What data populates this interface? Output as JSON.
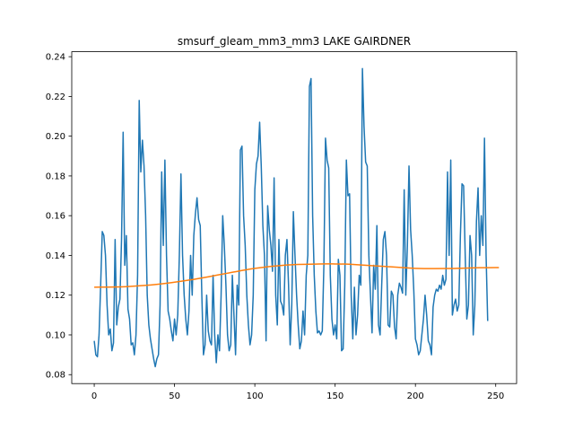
{
  "chart_data": {
    "type": "line",
    "title": "smsurf_gleam_mm3_mm3 LAKE GAIRDNER",
    "xlabel": "",
    "ylabel": "",
    "xlim": [
      -14,
      263
    ],
    "ylim": [
      0.0755,
      0.2425
    ],
    "x_ticks": [
      0,
      50,
      100,
      150,
      200,
      250
    ],
    "y_ticks": [
      0.08,
      0.1,
      0.12,
      0.14,
      0.16,
      0.18,
      0.2,
      0.22,
      0.24
    ],
    "grid": false,
    "legend": "none",
    "series": [
      {
        "color": "#1f77b4",
        "values": [
          0.097,
          0.09,
          0.089,
          0.1,
          0.125,
          0.152,
          0.15,
          0.14,
          0.115,
          0.1,
          0.103,
          0.092,
          0.096,
          0.148,
          0.105,
          0.114,
          0.118,
          0.148,
          0.202,
          0.135,
          0.15,
          0.113,
          0.108,
          0.095,
          0.096,
          0.09,
          0.1,
          0.13,
          0.218,
          0.182,
          0.198,
          0.185,
          0.16,
          0.12,
          0.105,
          0.098,
          0.093,
          0.088,
          0.084,
          0.088,
          0.09,
          0.115,
          0.182,
          0.145,
          0.188,
          0.14,
          0.112,
          0.108,
          0.102,
          0.097,
          0.108,
          0.1,
          0.11,
          0.14,
          0.181,
          0.14,
          0.12,
          0.108,
          0.1,
          0.112,
          0.14,
          0.12,
          0.15,
          0.161,
          0.169,
          0.158,
          0.155,
          0.12,
          0.09,
          0.095,
          0.12,
          0.102,
          0.097,
          0.095,
          0.13,
          0.1,
          0.086,
          0.1,
          0.092,
          0.12,
          0.16,
          0.145,
          0.125,
          0.1,
          0.092,
          0.095,
          0.13,
          0.11,
          0.09,
          0.125,
          0.115,
          0.193,
          0.195,
          0.16,
          0.145,
          0.12,
          0.105,
          0.095,
          0.1,
          0.12,
          0.173,
          0.186,
          0.19,
          0.207,
          0.185,
          0.155,
          0.14,
          0.097,
          0.165,
          0.153,
          0.145,
          0.132,
          0.179,
          0.12,
          0.105,
          0.148,
          0.117,
          0.115,
          0.11,
          0.14,
          0.148,
          0.125,
          0.095,
          0.115,
          0.162,
          0.14,
          0.12,
          0.105,
          0.093,
          0.097,
          0.112,
          0.1,
          0.13,
          0.14,
          0.225,
          0.229,
          0.16,
          0.13,
          0.112,
          0.101,
          0.102,
          0.1,
          0.102,
          0.135,
          0.199,
          0.188,
          0.184,
          0.13,
          0.108,
          0.1,
          0.105,
          0.098,
          0.138,
          0.13,
          0.092,
          0.093,
          0.125,
          0.188,
          0.17,
          0.171,
          0.12,
          0.098,
          0.124,
          0.1,
          0.11,
          0.13,
          0.125,
          0.234,
          0.205,
          0.187,
          0.185,
          0.14,
          0.12,
          0.101,
          0.135,
          0.123,
          0.155,
          0.105,
          0.1,
          0.125,
          0.148,
          0.152,
          0.14,
          0.105,
          0.104,
          0.122,
          0.12,
          0.104,
          0.098,
          0.12,
          0.126,
          0.124,
          0.121,
          0.173,
          0.12,
          0.145,
          0.185,
          0.153,
          0.14,
          0.122,
          0.098,
          0.095,
          0.09,
          0.092,
          0.1,
          0.108,
          0.12,
          0.11,
          0.097,
          0.095,
          0.09,
          0.114,
          0.12,
          0.123,
          0.122,
          0.125,
          0.123,
          0.13,
          0.125,
          0.128,
          0.182,
          0.14,
          0.188,
          0.11,
          0.115,
          0.118,
          0.112,
          0.115,
          0.15,
          0.176,
          0.175,
          0.14,
          0.108,
          0.115,
          0.15,
          0.14,
          0.1,
          0.115,
          0.157,
          0.174,
          0.14,
          0.16,
          0.145,
          0.199,
          0.14,
          0.107
        ]
      },
      {
        "color": "#ff7f0e",
        "anchors": {
          "x": [
            0,
            20,
            40,
            60,
            80,
            100,
            120,
            140,
            150,
            160,
            180,
            200,
            220,
            240,
            252
          ],
          "y": [
            0.124,
            0.1243,
            0.1255,
            0.1277,
            0.1306,
            0.1335,
            0.1352,
            0.1357,
            0.1357,
            0.1355,
            0.1345,
            0.1335,
            0.1334,
            0.1338,
            0.1339
          ]
        }
      }
    ]
  }
}
